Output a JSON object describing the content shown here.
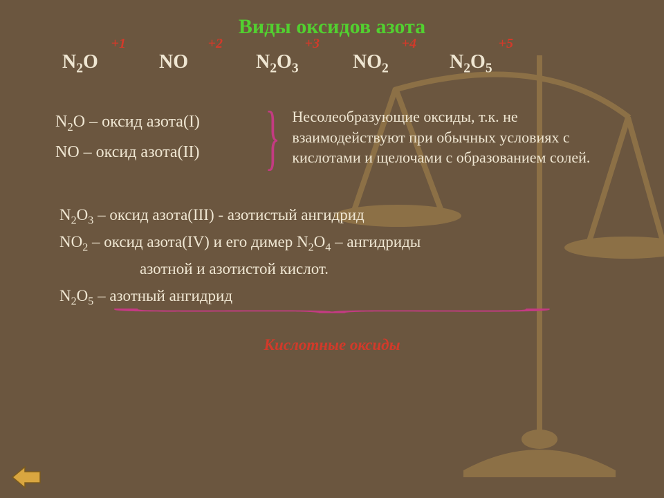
{
  "title": "Виды оксидов азота",
  "formulas": [
    {
      "ox": "+1",
      "f": "N<sub>2</sub>O"
    },
    {
      "ox": "+2",
      "f": "NO"
    },
    {
      "ox": "+3",
      "f": "N<sub>2</sub>O<sub>3</sub>"
    },
    {
      "ox": "+4",
      "f": "NO<sub>2</sub>"
    },
    {
      "ox": "+5",
      "f": "N<sub>2</sub>O<sub>5</sub>"
    }
  ],
  "noox": {
    "l1": "N<sub>2</sub>O – оксид азота(I)",
    "l2": "NO – оксид азота(II)",
    "desc": "Несолеобразующие оксиды, т.к. не взаимодействуют при обычных условиях с кислотами и щелочами с образованием солей."
  },
  "acidic": {
    "l1": "N<sub>2</sub>O<sub>3</sub> – оксид азота(III) - азотистый ангидрид",
    "l2": "NO<sub>2</sub> – оксид азота(IV) и его димер N<sub>2</sub>O<sub>4</sub> –  ангидриды",
    "l2b": "азотной и азотистой кислот.",
    "l3": "N<sub>2</sub>O<sub>5</sub> – азотный ангидрид",
    "label": "Кислотные оксиды"
  },
  "colors": {
    "bg": "#6b563f",
    "title": "#52d030",
    "ox_red": "#d23a2a",
    "brace": "#c33b82",
    "text": "#efe6d2",
    "nav_fill": "#d9a640",
    "nav_stroke": "#7a5a1e"
  }
}
